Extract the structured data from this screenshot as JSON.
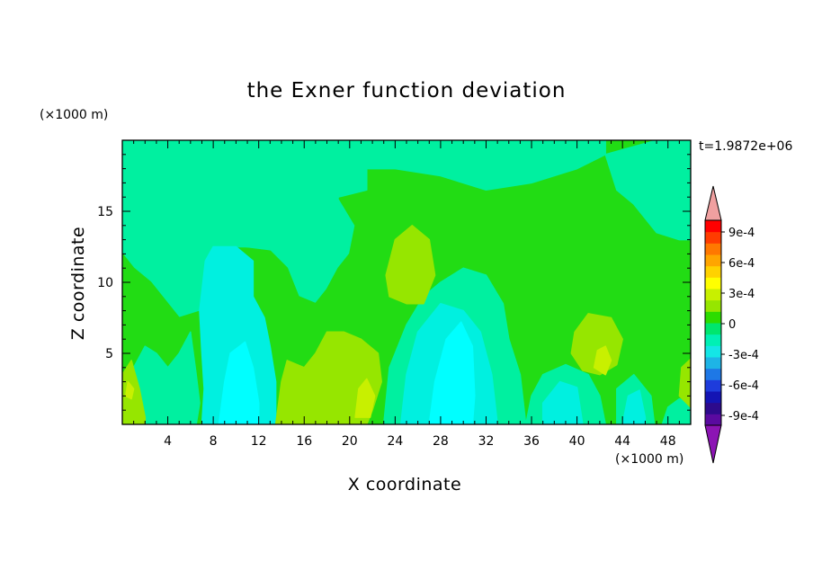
{
  "chart_data": {
    "type": "heatmap",
    "title": "the Exner function deviation",
    "xlabel": "X coordinate",
    "ylabel": "Z coordinate",
    "x_unit": "(×1000 m)",
    "y_unit": "(×1000 m)",
    "time_label": "t=1.9872e+06",
    "xlim": [
      0,
      50
    ],
    "ylim": [
      0,
      20
    ],
    "x_ticks": [
      "4",
      "8",
      "12",
      "16",
      "20",
      "24",
      "28",
      "32",
      "36",
      "40",
      "44",
      "48"
    ],
    "y_ticks": [
      "5",
      "10",
      "15"
    ],
    "colorbar": {
      "labels": [
        "9e-4",
        "6e-4",
        "3e-4",
        "0",
        "-3e-4",
        "-6e-4",
        "-9e-4"
      ],
      "levels": [
        -0.0009,
        -0.0006,
        -0.0003,
        0,
        0.0003,
        0.0006,
        0.0009
      ],
      "colors": [
        "#5a0aa0",
        "#2d0a8c",
        "#1414b4",
        "#1e3cdc",
        "#1e78e6",
        "#1eb4e6",
        "#14e6e6",
        "#00f0b4",
        "#00e66e",
        "#2ddc00",
        "#96e600",
        "#c8f000",
        "#ffff00",
        "#ffd200",
        "#ffa500",
        "#ff7800",
        "#ff3c00",
        "#ff0000"
      ],
      "under_color": "#8c14b4",
      "over_color": "#f0a0a0"
    },
    "field_colors": {
      "zero_band": "#00f0a0",
      "slight_positive": "#22dc14",
      "positive": "#96e600",
      "strong_positive": "#c8f000",
      "slight_negative": "#00f0e0",
      "negative": "#00ffff"
    },
    "regions": [
      {
        "level": "slight_positive",
        "poly": [
          [
            10.5,
            20
          ],
          [
            50,
            20
          ],
          [
            50,
            18
          ],
          [
            48,
            16.5
          ],
          [
            49,
            15
          ],
          [
            50,
            14
          ],
          [
            50,
            0
          ],
          [
            0,
            0
          ],
          [
            0,
            12
          ],
          [
            1,
            11
          ],
          [
            2.5,
            10
          ],
          [
            4,
            8.5
          ],
          [
            5,
            7.5
          ],
          [
            7,
            8
          ],
          [
            8,
            11
          ],
          [
            10,
            12.5
          ],
          [
            13,
            12.2
          ],
          [
            14.5,
            11
          ],
          [
            15.5,
            9
          ],
          [
            17,
            8.5
          ],
          [
            18,
            9.5
          ],
          [
            19,
            11
          ],
          [
            20,
            12
          ],
          [
            20.5,
            14
          ],
          [
            19,
            16
          ],
          [
            18.5,
            17.5
          ],
          [
            17,
            18.5
          ],
          [
            15.5,
            19.2
          ],
          [
            14,
            19.6
          ]
        ]
      },
      {
        "level": "slight_positive",
        "poly": [
          [
            41.5,
            20
          ],
          [
            50,
            20
          ],
          [
            50,
            19
          ],
          [
            47,
            18.5
          ],
          [
            44,
            18
          ],
          [
            41.5,
            19.5
          ]
        ]
      },
      {
        "level": "zero_band",
        "poly": [
          [
            0,
            20
          ],
          [
            21.5,
            20
          ],
          [
            21.5,
            16.5
          ],
          [
            19,
            16
          ],
          [
            18.5,
            14
          ],
          [
            19,
            12
          ],
          [
            17,
            11.5
          ],
          [
            16,
            10
          ],
          [
            14.5,
            12
          ],
          [
            12,
            12.5
          ],
          [
            9.5,
            12.5
          ],
          [
            7.5,
            10.5
          ],
          [
            6,
            9
          ],
          [
            4,
            10
          ],
          [
            2.5,
            11.5
          ],
          [
            1,
            12.5
          ],
          [
            0,
            12
          ]
        ]
      },
      {
        "level": "zero_band",
        "poly": [
          [
            20.5,
            20
          ],
          [
            42.5,
            20
          ],
          [
            42.5,
            19
          ],
          [
            40,
            18
          ],
          [
            36,
            17
          ],
          [
            32,
            16.5
          ],
          [
            28,
            17.5
          ],
          [
            24,
            18
          ],
          [
            21.5,
            18
          ]
        ]
      },
      {
        "level": "zero_band",
        "poly": [
          [
            42.5,
            19
          ],
          [
            43.5,
            16.5
          ],
          [
            45,
            15.5
          ],
          [
            47,
            13.5
          ],
          [
            49,
            13
          ],
          [
            50,
            13
          ],
          [
            50,
            20
          ],
          [
            47,
            20
          ]
        ]
      },
      {
        "level": "zero_band",
        "poly": [
          [
            1,
            0
          ],
          [
            0.5,
            2
          ],
          [
            1,
            4
          ],
          [
            2,
            5.5
          ],
          [
            3,
            5
          ],
          [
            4,
            4
          ],
          [
            5,
            5
          ],
          [
            6,
            6.5
          ],
          [
            6.5,
            3.5
          ],
          [
            6.8,
            1.5
          ],
          [
            6.5,
            0
          ]
        ]
      },
      {
        "level": "zero_band",
        "poly": [
          [
            23,
            0
          ],
          [
            23.5,
            4
          ],
          [
            25,
            7
          ],
          [
            26.5,
            9
          ],
          [
            28,
            10
          ],
          [
            30,
            11
          ],
          [
            32,
            10.5
          ],
          [
            33.5,
            8.5
          ],
          [
            34,
            6
          ],
          [
            35,
            3.5
          ],
          [
            35.5,
            0
          ]
        ]
      },
      {
        "level": "zero_band",
        "poly": [
          [
            35.5,
            0
          ],
          [
            36,
            2
          ],
          [
            37,
            3.5
          ],
          [
            39,
            4.2
          ],
          [
            41,
            3.5
          ],
          [
            42,
            2
          ],
          [
            42.5,
            0
          ]
        ]
      },
      {
        "level": "zero_band",
        "poly": [
          [
            43.5,
            0
          ],
          [
            43.5,
            2.5
          ],
          [
            45,
            3.5
          ],
          [
            46.5,
            2
          ],
          [
            46.8,
            0
          ]
        ]
      },
      {
        "level": "zero_band",
        "poly": [
          [
            47.5,
            0
          ],
          [
            48,
            1.2
          ],
          [
            49,
            1.8
          ],
          [
            50,
            1.5
          ],
          [
            50,
            0
          ]
        ]
      },
      {
        "level": "slight_negative",
        "poly": [
          [
            7,
            0
          ],
          [
            7.2,
            2.5
          ],
          [
            7,
            5
          ],
          [
            6.8,
            8
          ],
          [
            7.3,
            11.5
          ],
          [
            8,
            12.5
          ],
          [
            10,
            12.5
          ],
          [
            11.5,
            11.5
          ],
          [
            11.5,
            9
          ],
          [
            12.5,
            7.5
          ],
          [
            13,
            5.5
          ],
          [
            13.5,
            3
          ],
          [
            13.5,
            0
          ]
        ]
      },
      {
        "level": "slight_negative",
        "poly": [
          [
            24.5,
            0
          ],
          [
            25,
            3.5
          ],
          [
            26,
            6.5
          ],
          [
            28,
            8.5
          ],
          [
            30,
            8
          ],
          [
            31.5,
            6.5
          ],
          [
            32.5,
            3.5
          ],
          [
            33,
            0
          ]
        ]
      },
      {
        "level": "slight_negative",
        "poly": [
          [
            37,
            0
          ],
          [
            37,
            1.5
          ],
          [
            38.5,
            3
          ],
          [
            40,
            2.6
          ],
          [
            40.5,
            0
          ]
        ]
      },
      {
        "level": "slight_negative",
        "poly": [
          [
            44,
            0
          ],
          [
            44.5,
            2
          ],
          [
            45.5,
            2.4
          ],
          [
            46,
            0.5
          ],
          [
            46,
            0
          ]
        ]
      },
      {
        "level": "negative",
        "poly": [
          [
            8.5,
            0
          ],
          [
            9,
            3
          ],
          [
            9.5,
            5
          ],
          [
            10.8,
            5.8
          ],
          [
            11.5,
            4
          ],
          [
            12,
            1.5
          ],
          [
            12,
            0
          ]
        ]
      },
      {
        "level": "negative",
        "poly": [
          [
            27,
            0
          ],
          [
            27.5,
            3
          ],
          [
            28.5,
            6
          ],
          [
            29.8,
            7.2
          ],
          [
            30.8,
            5.5
          ],
          [
            31,
            2
          ],
          [
            30.8,
            0
          ]
        ]
      },
      {
        "level": "positive",
        "poly": [
          [
            13.5,
            0
          ],
          [
            14,
            3
          ],
          [
            14.5,
            4.5
          ],
          [
            16,
            4
          ],
          [
            17,
            5
          ],
          [
            18,
            6.5
          ],
          [
            19.5,
            6.5
          ],
          [
            21,
            6
          ],
          [
            22.5,
            5
          ],
          [
            22.8,
            3
          ],
          [
            22,
            1
          ],
          [
            21.5,
            0
          ]
        ]
      },
      {
        "level": "positive",
        "poly": [
          [
            23.2,
            10.5
          ],
          [
            24,
            13
          ],
          [
            25.5,
            14
          ],
          [
            27,
            13
          ],
          [
            27.5,
            10.5
          ],
          [
            26.5,
            8.5
          ],
          [
            25,
            8.5
          ],
          [
            23.5,
            9
          ]
        ]
      },
      {
        "level": "positive",
        "poly": [
          [
            39.5,
            5
          ],
          [
            39.8,
            6.5
          ],
          [
            41,
            7.8
          ],
          [
            43,
            7.5
          ],
          [
            44,
            6
          ],
          [
            43.5,
            4.2
          ],
          [
            42,
            3.5
          ],
          [
            40.5,
            3.8
          ]
        ]
      },
      {
        "level": "positive",
        "poly": [
          [
            0,
            0
          ],
          [
            0,
            3.5
          ],
          [
            0.8,
            4.5
          ],
          [
            1.5,
            2.5
          ],
          [
            2,
            0.5
          ],
          [
            2,
            0
          ]
        ]
      },
      {
        "level": "positive",
        "poly": [
          [
            49,
            2
          ],
          [
            49.2,
            4
          ],
          [
            50,
            4.6
          ],
          [
            50,
            1.2
          ]
        ]
      },
      {
        "level": "strong_positive",
        "poly": [
          [
            20.5,
            0.5
          ],
          [
            20.8,
            2.5
          ],
          [
            21.5,
            3.2
          ],
          [
            22.2,
            2
          ],
          [
            21.8,
            0.5
          ]
        ]
      },
      {
        "level": "strong_positive",
        "poly": [
          [
            41.5,
            4
          ],
          [
            41.8,
            5.2
          ],
          [
            42.5,
            5.5
          ],
          [
            43,
            4.5
          ],
          [
            42.5,
            3.5
          ]
        ]
      },
      {
        "level": "strong_positive",
        "poly": [
          [
            0.3,
            2
          ],
          [
            0.5,
            3
          ],
          [
            1,
            2.5
          ],
          [
            0.8,
            1.8
          ]
        ]
      }
    ]
  }
}
